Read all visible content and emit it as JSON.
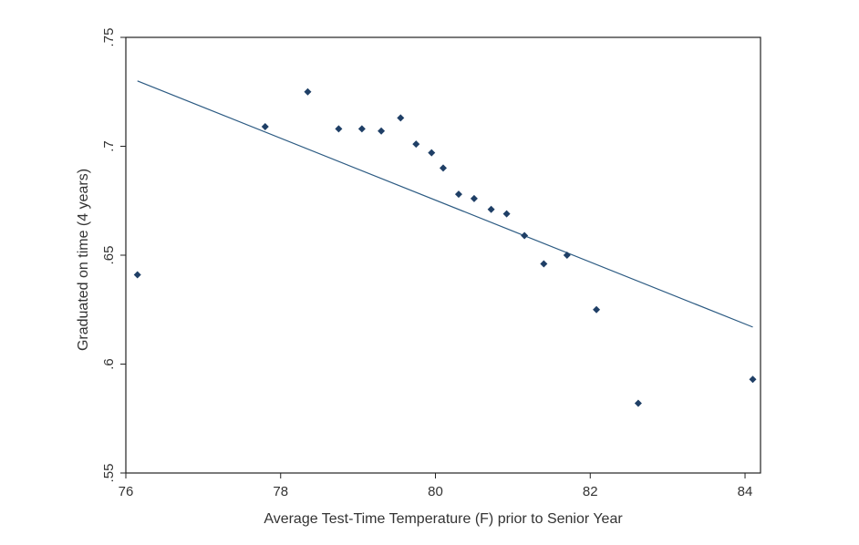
{
  "chart_data": {
    "type": "scatter",
    "title": "",
    "xlabel": "Average Test-Time Temperature (F) prior to Senior Year",
    "ylabel": "Graduated on time (4 years)",
    "xlim": [
      76,
      84.2
    ],
    "ylim": [
      0.55,
      0.75
    ],
    "x_ticks": [
      76,
      78,
      80,
      82,
      84
    ],
    "x_tick_labels": [
      "76",
      "78",
      "80",
      "82",
      "84"
    ],
    "y_ticks": [
      0.55,
      0.6,
      0.65,
      0.7,
      0.75
    ],
    "y_tick_labels": [
      ".55",
      ".6",
      ".65",
      ".7",
      ".75"
    ],
    "grid": false,
    "legend": "none",
    "point_color": "#1f3f66",
    "line_color": "#2b5a82",
    "points": [
      {
        "x": 76.15,
        "y": 0.641
      },
      {
        "x": 77.8,
        "y": 0.709
      },
      {
        "x": 78.35,
        "y": 0.725
      },
      {
        "x": 78.75,
        "y": 0.708
      },
      {
        "x": 79.05,
        "y": 0.708
      },
      {
        "x": 79.3,
        "y": 0.707
      },
      {
        "x": 79.55,
        "y": 0.713
      },
      {
        "x": 79.75,
        "y": 0.701
      },
      {
        "x": 79.95,
        "y": 0.697
      },
      {
        "x": 80.1,
        "y": 0.69
      },
      {
        "x": 80.3,
        "y": 0.678
      },
      {
        "x": 80.5,
        "y": 0.676
      },
      {
        "x": 80.72,
        "y": 0.671
      },
      {
        "x": 80.92,
        "y": 0.669
      },
      {
        "x": 81.15,
        "y": 0.659
      },
      {
        "x": 81.4,
        "y": 0.646
      },
      {
        "x": 81.7,
        "y": 0.65
      },
      {
        "x": 82.08,
        "y": 0.625
      },
      {
        "x": 82.62,
        "y": 0.582
      },
      {
        "x": 84.1,
        "y": 0.593
      }
    ],
    "fit_line": {
      "x": [
        76.15,
        84.1
      ],
      "y": [
        0.73,
        0.617
      ]
    }
  }
}
